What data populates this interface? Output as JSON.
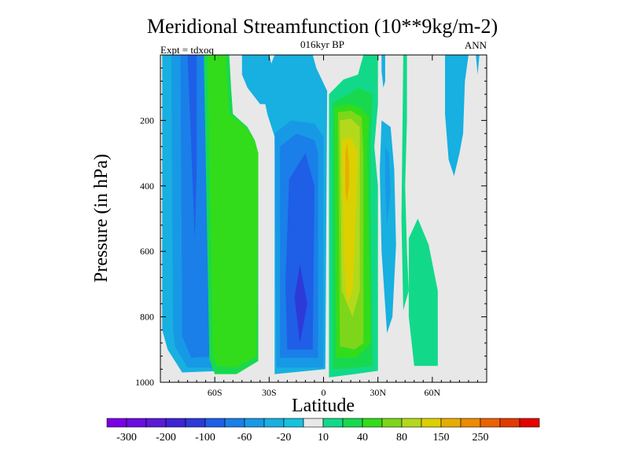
{
  "chart_data": {
    "type": "heatmap",
    "title": "Meridional Streamfunction (10**9kg/m-2)",
    "subtitle": "016kyr BP",
    "left_label": "Expt = tdxoq",
    "right_label": "ANN",
    "xlabel": "Latitude",
    "ylabel": "Pressure (in hPa)",
    "xlim": [
      -90,
      90
    ],
    "ylim": [
      1000,
      0
    ],
    "x_ticks": [
      {
        "value": -60,
        "label": "60S"
      },
      {
        "value": -30,
        "label": "30S"
      },
      {
        "value": 0,
        "label": "0"
      },
      {
        "value": 30,
        "label": "30N"
      },
      {
        "value": 60,
        "label": "60N"
      }
    ],
    "y_ticks": [
      {
        "value": 200,
        "label": "200"
      },
      {
        "value": 400,
        "label": "400"
      },
      {
        "value": 600,
        "label": "600"
      },
      {
        "value": 800,
        "label": "800"
      },
      {
        "value": 1000,
        "label": "1000"
      }
    ],
    "colorbar": {
      "colors": [
        "#7a00e6",
        "#6a0ee0",
        "#5b1bd6",
        "#3e24d4",
        "#2d3ad8",
        "#1f5ee6",
        "#1a7fe8",
        "#1899e6",
        "#17b0e0",
        "#16c2de",
        "#e8e8e8",
        "#12d98a",
        "#18d94e",
        "#33dc1a",
        "#7ed61a",
        "#b4d91b",
        "#dcd000",
        "#e6ad00",
        "#ec8a00",
        "#ea6200",
        "#e23a00",
        "#e60000"
      ],
      "tick_labels": [
        "-300",
        "-200",
        "-100",
        "-60",
        "-20",
        "10",
        "40",
        "80",
        "150",
        "250"
      ]
    },
    "regions": [
      {
        "color": "#17b0e0",
        "points": [
          [
            -89,
            0
          ],
          [
            -58,
            0
          ],
          [
            -57,
            370
          ],
          [
            -56,
            965
          ],
          [
            -78,
            970
          ],
          [
            -86,
            900
          ],
          [
            -89,
            840
          ]
        ]
      },
      {
        "color": "#1899e6",
        "points": [
          [
            -84,
            0
          ],
          [
            -59,
            0
          ],
          [
            -58,
            370
          ],
          [
            -57,
            955
          ],
          [
            -75,
            955
          ],
          [
            -82,
            890
          ],
          [
            -83,
            840
          ]
        ]
      },
      {
        "color": "#1a7fe8",
        "points": [
          [
            -79,
            0
          ],
          [
            -61,
            0
          ],
          [
            -60,
            370
          ],
          [
            -59,
            920
          ],
          [
            -73,
            925
          ],
          [
            -78,
            860
          ],
          [
            -78,
            800
          ]
        ]
      },
      {
        "color": "#1f5ee6",
        "points": [
          [
            -75,
            0
          ],
          [
            -70,
            0
          ],
          [
            -70,
            360
          ],
          [
            -71,
            560
          ]
        ]
      },
      {
        "color": "#17b0e0",
        "points": [
          [
            -27,
            0
          ],
          [
            -6,
            0
          ],
          [
            -4,
            40
          ],
          [
            2,
            110
          ],
          [
            1,
            960
          ],
          [
            -27,
            975
          ],
          [
            -27,
            250
          ],
          [
            -31,
            180
          ],
          [
            -34,
            100
          ]
        ]
      },
      {
        "color": "#1899e6",
        "points": [
          [
            -27,
            240
          ],
          [
            -18,
            200
          ],
          [
            -5,
            210
          ],
          [
            0,
            250
          ],
          [
            0,
            955
          ],
          [
            -26,
            955
          ]
        ]
      },
      {
        "color": "#1a7fe8",
        "points": [
          [
            -24,
            280
          ],
          [
            -15,
            240
          ],
          [
            -5,
            260
          ],
          [
            -3,
            300
          ],
          [
            -3,
            925
          ],
          [
            -24,
            925
          ]
        ]
      },
      {
        "color": "#1f5ee6",
        "points": [
          [
            -19,
            380
          ],
          [
            -10,
            300
          ],
          [
            -5,
            400
          ],
          [
            -6,
            900
          ],
          [
            -20,
            900
          ],
          [
            -21,
            700
          ]
        ]
      },
      {
        "color": "#2d3ad8",
        "points": [
          [
            -16,
            740
          ],
          [
            -13,
            640
          ],
          [
            -9,
            760
          ],
          [
            -13,
            880
          ]
        ]
      },
      {
        "color": "#18d94e",
        "points": [
          [
            -66,
            0
          ],
          [
            -52,
            0
          ],
          [
            -51,
            100
          ],
          [
            -50,
            180
          ],
          [
            -42,
            220
          ],
          [
            -38,
            260
          ],
          [
            -36,
            300
          ],
          [
            -36,
            935
          ],
          [
            -48,
            975
          ],
          [
            -60,
            975
          ],
          [
            -63,
            930
          ]
        ]
      },
      {
        "color": "#33dc1a",
        "points": [
          [
            -64,
            0
          ],
          [
            -54,
            0
          ],
          [
            -53,
            100
          ],
          [
            -52,
            180
          ],
          [
            -44,
            215
          ],
          [
            -38,
            260
          ],
          [
            -36,
            300
          ],
          [
            -37,
            920
          ],
          [
            -48,
            955
          ],
          [
            -59,
            950
          ],
          [
            -61,
            920
          ]
        ]
      },
      {
        "color": "#12d98a",
        "points": [
          [
            3,
            120
          ],
          [
            11,
            75
          ],
          [
            19,
            60
          ],
          [
            22,
            0
          ],
          [
            30,
            0
          ],
          [
            30,
            150
          ],
          [
            28,
            280
          ],
          [
            30,
            400
          ],
          [
            30,
            965
          ],
          [
            17,
            975
          ],
          [
            3,
            985
          ]
        ]
      },
      {
        "color": "#18d94e",
        "points": [
          [
            5,
            145
          ],
          [
            14,
            120
          ],
          [
            19,
            100
          ],
          [
            27,
            120
          ],
          [
            26,
            300
          ],
          [
            27,
            950
          ],
          [
            12,
            960
          ],
          [
            5,
            960
          ]
        ]
      },
      {
        "color": "#33dc1a",
        "points": [
          [
            6,
            160
          ],
          [
            13,
            150
          ],
          [
            20,
            160
          ],
          [
            25,
            190
          ],
          [
            24,
            290
          ],
          [
            26,
            880
          ],
          [
            18,
            925
          ],
          [
            7,
            925
          ]
        ]
      },
      {
        "color": "#7ed61a",
        "points": [
          [
            8,
            175
          ],
          [
            15,
            170
          ],
          [
            21,
            190
          ],
          [
            22,
            300
          ],
          [
            22,
            880
          ],
          [
            17,
            900
          ],
          [
            9,
            890
          ]
        ]
      },
      {
        "color": "#b4d91b",
        "points": [
          [
            9,
            200
          ],
          [
            15,
            195
          ],
          [
            20,
            220
          ],
          [
            20,
            720
          ],
          [
            16,
            800
          ],
          [
            10,
            720
          ]
        ]
      },
      {
        "color": "#dcd000",
        "points": [
          [
            10,
            260
          ],
          [
            15,
            250
          ],
          [
            19,
            300
          ],
          [
            17,
            600
          ],
          [
            16,
            720
          ],
          [
            13,
            760
          ],
          [
            11,
            600
          ]
        ]
      },
      {
        "color": "#e6ad00",
        "points": [
          [
            12,
            300
          ],
          [
            13,
            270
          ],
          [
            14,
            330
          ],
          [
            14,
            400
          ],
          [
            13,
            450
          ],
          [
            12,
            420
          ]
        ]
      },
      {
        "color": "#17b0e0",
        "points": [
          [
            -45,
            0
          ],
          [
            -30,
            0
          ],
          [
            -25,
            110
          ],
          [
            -20,
            150
          ],
          [
            -35,
            150
          ],
          [
            -42,
            100
          ],
          [
            -45,
            60
          ]
        ]
      },
      {
        "color": "#17b0e0",
        "points": [
          [
            32,
            200
          ],
          [
            37,
            220
          ],
          [
            39,
            350
          ],
          [
            40,
            580
          ],
          [
            38,
            800
          ],
          [
            35,
            850
          ],
          [
            32,
            600
          ],
          [
            31,
            350
          ]
        ]
      },
      {
        "color": "#1899e6",
        "points": [
          [
            34,
            280
          ],
          [
            36,
            300
          ],
          [
            37,
            420
          ],
          [
            35,
            520
          ],
          [
            34,
            400
          ]
        ]
      },
      {
        "color": "#12d98a",
        "points": [
          [
            44,
            0
          ],
          [
            46,
            0
          ],
          [
            46,
            200
          ],
          [
            45,
            400
          ],
          [
            46,
            600
          ],
          [
            47,
            720
          ],
          [
            44,
            780
          ],
          [
            43,
            500
          ]
        ]
      },
      {
        "color": "#12d98a",
        "points": [
          [
            47,
            560
          ],
          [
            52,
            500
          ],
          [
            58,
            580
          ],
          [
            63,
            720
          ],
          [
            63,
            950
          ],
          [
            50,
            950
          ],
          [
            47,
            800
          ]
        ]
      },
      {
        "color": "#17b0e0",
        "points": [
          [
            32,
            0
          ],
          [
            34,
            0
          ],
          [
            34,
            80
          ],
          [
            33,
            100
          ],
          [
            32,
            50
          ]
        ]
      },
      {
        "color": "#17b0e0",
        "points": [
          [
            67,
            0
          ],
          [
            80,
            0
          ],
          [
            78,
            80
          ],
          [
            77,
            240
          ],
          [
            75,
            300
          ],
          [
            72,
            370
          ],
          [
            69,
            320
          ],
          [
            67,
            180
          ]
        ]
      },
      {
        "color": "#17b0e0",
        "points": [
          [
            84,
            0
          ],
          [
            86,
            0
          ],
          [
            85,
            60
          ]
        ]
      }
    ]
  }
}
